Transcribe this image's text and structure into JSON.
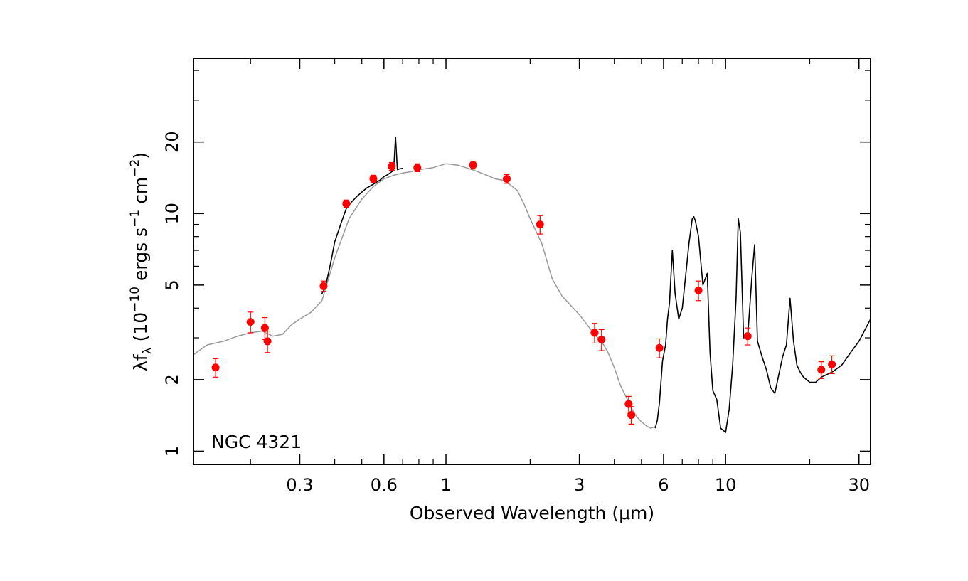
{
  "chart_data": {
    "type": "scatter",
    "title": "",
    "annotation": "NGC 4321",
    "xlabel": "Observed Wavelength (μm)",
    "ylabel": {
      "base": "λf",
      "sub": "λ",
      "units_prefix": " (10",
      "exp1": "−10",
      "units_mid": " ergs s",
      "exp2": "−1",
      "units_mid2": " cm",
      "exp3": "−2",
      "units_suffix": ")"
    },
    "x_scale": "log",
    "y_scale": "log",
    "xlim": [
      0.125,
      33
    ],
    "ylim": [
      0.88,
      45
    ],
    "x_ticks": [
      {
        "value": 0.3,
        "label": "0.3"
      },
      {
        "value": 0.6,
        "label": "0.6"
      },
      {
        "value": 1,
        "label": "1"
      },
      {
        "value": 3,
        "label": "3"
      },
      {
        "value": 6,
        "label": "6"
      },
      {
        "value": 10,
        "label": "10"
      },
      {
        "value": 30,
        "label": "30"
      }
    ],
    "y_ticks": [
      {
        "value": 1,
        "label": "1"
      },
      {
        "value": 2,
        "label": "2"
      },
      {
        "value": 5,
        "label": "5"
      },
      {
        "value": 10,
        "label": "10"
      },
      {
        "value": 20,
        "label": "20"
      }
    ],
    "x_minor_ticks": [
      0.2,
      0.4,
      0.5,
      0.7,
      0.8,
      0.9,
      2,
      4,
      5,
      7,
      8,
      9,
      20
    ],
    "y_minor_ticks": [
      3,
      4,
      6,
      7,
      8,
      9,
      30,
      40
    ],
    "grid": false,
    "colors": {
      "points": "#ff0000",
      "model_curve": "#999999",
      "observed_spectrum": "#000000",
      "axes": "#000000"
    },
    "series": [
      {
        "kind": "photometry",
        "x": [
          0.15,
          0.2,
          0.225,
          0.23,
          0.365,
          0.44,
          0.55,
          0.64,
          0.79,
          1.25,
          1.65,
          2.17,
          3.4,
          3.6,
          4.5,
          4.6,
          5.8,
          8.0,
          12.0,
          22.0,
          24.0
        ],
        "y": [
          2.25,
          3.5,
          3.3,
          2.9,
          4.95,
          11.0,
          14.0,
          15.8,
          15.6,
          16.0,
          14.0,
          9.0,
          3.15,
          2.95,
          1.58,
          1.42,
          2.72,
          4.75,
          3.05,
          2.2,
          2.32
        ],
        "yerr": [
          0.2,
          0.35,
          0.35,
          0.3,
          0.25,
          0.4,
          0.5,
          0.6,
          0.6,
          0.6,
          0.6,
          0.8,
          0.3,
          0.3,
          0.12,
          0.12,
          0.25,
          0.45,
          0.25,
          0.18,
          0.2
        ]
      },
      {
        "kind": "model",
        "x": [
          0.125,
          0.14,
          0.16,
          0.18,
          0.2,
          0.22,
          0.24,
          0.26,
          0.28,
          0.3,
          0.33,
          0.36,
          0.4,
          0.45,
          0.5,
          0.55,
          0.6,
          0.65,
          0.7,
          0.75,
          0.8,
          0.9,
          1.0,
          1.1,
          1.2,
          1.3,
          1.4,
          1.5,
          1.6,
          1.7,
          1.8,
          1.9,
          2.0,
          2.2,
          2.4,
          2.6,
          2.8,
          3.0,
          3.2,
          3.4,
          3.6,
          3.8,
          4.0,
          4.2,
          4.4,
          4.6,
          4.8,
          5.0,
          5.2,
          5.4,
          5.6
        ],
        "y": [
          2.55,
          2.8,
          2.9,
          3.05,
          3.15,
          3.2,
          3.05,
          3.1,
          3.4,
          3.6,
          3.85,
          4.3,
          6.5,
          9.5,
          11.5,
          13.0,
          14.0,
          14.5,
          14.8,
          15.0,
          15.3,
          15.6,
          16.2,
          16.0,
          15.5,
          15.0,
          14.5,
          14.0,
          13.8,
          13.2,
          12.5,
          11.0,
          9.5,
          7.5,
          5.3,
          4.5,
          4.1,
          3.75,
          3.4,
          3.1,
          2.9,
          2.6,
          2.25,
          1.9,
          1.7,
          1.52,
          1.4,
          1.33,
          1.28,
          1.25,
          1.27
        ]
      },
      {
        "kind": "observed_optical",
        "x": [
          0.36,
          0.37,
          0.38,
          0.39,
          0.4,
          0.42,
          0.44,
          0.46,
          0.48,
          0.5,
          0.52,
          0.55,
          0.58,
          0.6,
          0.62,
          0.65,
          0.66,
          0.67,
          0.68,
          0.7
        ],
        "y": [
          4.6,
          4.9,
          5.6,
          6.5,
          7.6,
          9.0,
          10.5,
          11.2,
          11.8,
          12.3,
          12.8,
          13.3,
          13.8,
          14.3,
          14.6,
          15.2,
          21.0,
          15.3,
          15.4,
          15.5
        ]
      },
      {
        "kind": "observed_infrared",
        "x": [
          5.6,
          5.7,
          5.8,
          5.95,
          6.1,
          6.2,
          6.3,
          6.45,
          6.6,
          6.8,
          7.0,
          7.2,
          7.4,
          7.6,
          7.7,
          7.8,
          8.0,
          8.3,
          8.6,
          8.8,
          9.0,
          9.3,
          9.6,
          10.0,
          10.3,
          10.6,
          10.9,
          11.1,
          11.3,
          11.6,
          12.0,
          12.4,
          12.7,
          13.0,
          13.5,
          14.0,
          14.5,
          15.0,
          15.5,
          16.0,
          16.5,
          17.0,
          17.5,
          18.0,
          18.5,
          19.0,
          20.0,
          21.0,
          22.0,
          24.0,
          26.0,
          28.0,
          30.0,
          33.0
        ],
        "y": [
          1.25,
          1.35,
          1.6,
          2.4,
          2.8,
          3.6,
          4.2,
          7.0,
          4.6,
          3.6,
          4.0,
          5.5,
          7.5,
          9.5,
          9.7,
          9.3,
          8.0,
          5.0,
          5.6,
          2.6,
          1.8,
          1.65,
          1.25,
          1.2,
          1.5,
          2.3,
          4.4,
          9.5,
          8.3,
          3.0,
          3.05,
          5.3,
          7.4,
          2.9,
          2.5,
          2.2,
          1.85,
          1.75,
          2.1,
          2.5,
          2.8,
          4.4,
          2.9,
          2.3,
          2.15,
          2.05,
          1.95,
          1.95,
          2.05,
          2.15,
          2.3,
          2.6,
          2.9,
          3.6
        ]
      }
    ]
  }
}
